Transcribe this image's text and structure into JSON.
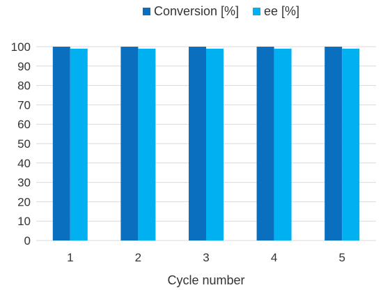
{
  "chart_data": {
    "type": "bar",
    "title": "",
    "xlabel": "Cycle number",
    "ylabel": "",
    "categories": [
      "1",
      "2",
      "3",
      "4",
      "5"
    ],
    "series": [
      {
        "name": "Conversion [%]",
        "color": "#0b6fbf",
        "values": [
          100,
          100,
          100,
          100,
          100
        ]
      },
      {
        "name": "ee [%]",
        "color": "#00b0f0",
        "values": [
          99,
          99,
          99,
          99,
          99
        ]
      }
    ],
    "ylim": [
      0,
      100
    ],
    "yticks": [
      0,
      10,
      20,
      30,
      40,
      50,
      60,
      70,
      80,
      90,
      100
    ],
    "grid": true,
    "grid_color": "#d9d9d9",
    "legend_position": "top"
  }
}
